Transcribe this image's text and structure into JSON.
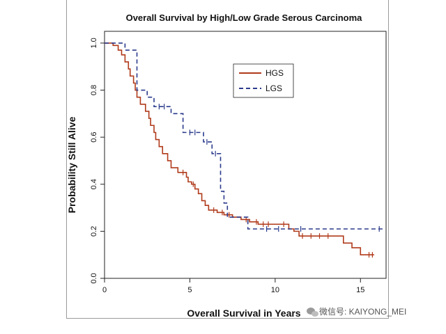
{
  "chart_data": {
    "type": "line",
    "title": "Overall Survival by High/Low Grade Serous Carcinoma",
    "xlabel": "Overall Survival in Years",
    "ylabel": "Probability Still Alive",
    "xlim": [
      0,
      16.5
    ],
    "ylim": [
      0,
      1.05
    ],
    "x_ticks": [
      0,
      5,
      10,
      15
    ],
    "y_ticks": [
      0.0,
      0.2,
      0.4,
      0.6,
      0.8,
      1.0
    ],
    "x_tick_labels": [
      "0",
      "5",
      "10",
      "15"
    ],
    "y_tick_labels": [
      "0.0",
      "0.2",
      "0.4",
      "0.6",
      "0.8",
      "1.0"
    ],
    "legend": {
      "position": "top-right-center",
      "entries": [
        "HGS",
        "LGS"
      ]
    },
    "series": [
      {
        "name": "HGS",
        "style": "solid",
        "color": "#b03a1a",
        "steps": [
          [
            0,
            1.0
          ],
          [
            0.5,
            0.99
          ],
          [
            0.8,
            0.97
          ],
          [
            1.0,
            0.95
          ],
          [
            1.2,
            0.92
          ],
          [
            1.4,
            0.89
          ],
          [
            1.5,
            0.86
          ],
          [
            1.7,
            0.83
          ],
          [
            1.8,
            0.8
          ],
          [
            1.9,
            0.77
          ],
          [
            2.1,
            0.74
          ],
          [
            2.4,
            0.71
          ],
          [
            2.6,
            0.68
          ],
          [
            2.7,
            0.65
          ],
          [
            2.9,
            0.62
          ],
          [
            3.0,
            0.59
          ],
          [
            3.2,
            0.56
          ],
          [
            3.4,
            0.53
          ],
          [
            3.7,
            0.5
          ],
          [
            3.9,
            0.47
          ],
          [
            4.3,
            0.45
          ],
          [
            4.8,
            0.43
          ],
          [
            4.9,
            0.41
          ],
          [
            5.1,
            0.4
          ],
          [
            5.3,
            0.38
          ],
          [
            5.5,
            0.36
          ],
          [
            5.7,
            0.33
          ],
          [
            5.9,
            0.31
          ],
          [
            6.1,
            0.29
          ],
          [
            6.6,
            0.28
          ],
          [
            7.0,
            0.27
          ],
          [
            7.5,
            0.26
          ],
          [
            8.0,
            0.25
          ],
          [
            8.5,
            0.24
          ],
          [
            9.0,
            0.23
          ],
          [
            10.8,
            0.21
          ],
          [
            11.1,
            0.2
          ],
          [
            11.4,
            0.18
          ],
          [
            14.0,
            0.15
          ],
          [
            14.5,
            0.13
          ],
          [
            15.0,
            0.1
          ],
          [
            15.8,
            0.1
          ]
        ],
        "censor_x": [
          4.6,
          5.2,
          6.4,
          6.9,
          7.3,
          8.3,
          8.9,
          9.3,
          9.6,
          10.5,
          11.6,
          12.1,
          12.6,
          13.1,
          15.5,
          15.7
        ]
      },
      {
        "name": "LGS",
        "style": "dashed",
        "color": "#2a3a8c",
        "steps": [
          [
            0,
            1.0
          ],
          [
            1.2,
            0.97
          ],
          [
            1.9,
            0.8
          ],
          [
            2.5,
            0.77
          ],
          [
            2.9,
            0.73
          ],
          [
            3.9,
            0.7
          ],
          [
            4.6,
            0.62
          ],
          [
            5.8,
            0.58
          ],
          [
            6.3,
            0.53
          ],
          [
            6.8,
            0.37
          ],
          [
            7.0,
            0.32
          ],
          [
            7.2,
            0.26
          ],
          [
            8.4,
            0.21
          ],
          [
            16.3,
            0.21
          ]
        ],
        "censor_x": [
          3.2,
          3.5,
          5.0,
          5.3,
          6.0,
          6.5,
          9.5,
          10.2,
          11.5,
          16.1
        ]
      }
    ]
  },
  "watermark": {
    "text": "微信号: KAIYONG_MEI",
    "icon": "wechat-icon"
  }
}
